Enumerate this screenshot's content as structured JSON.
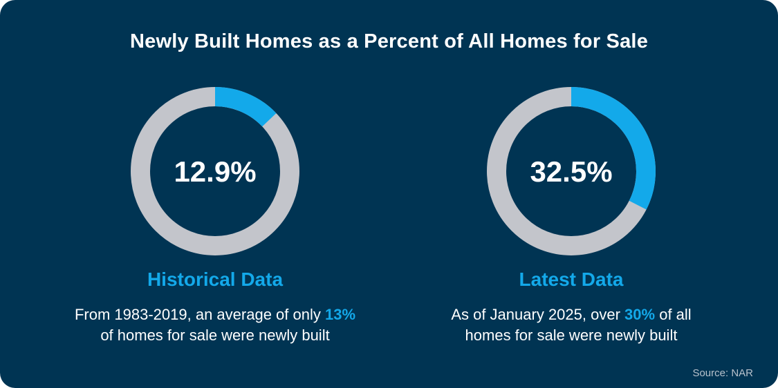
{
  "colors": {
    "background": "#003453",
    "accent": "#13a9ea",
    "track": "#c3c5cb",
    "text": "#ffffff"
  },
  "title": "Newly Built Homes as a Percent of All Homes for Sale",
  "panels": [
    {
      "heading": "Historical Data",
      "desc_line1_pre": "From 1983-2019, an average of only",
      "desc_highlight": "13%",
      "desc_line1_post": "",
      "desc_line2": "of homes for sale were newly built"
    },
    {
      "heading": "Latest Data",
      "desc_line1_pre": "As of January 2025, over",
      "desc_highlight": "30%",
      "desc_line1_post": "of all",
      "desc_line2": "homes for sale were newly built"
    }
  ],
  "source": "Source: NAR",
  "chart_data": [
    {
      "type": "pie",
      "title": "Historical Data",
      "value": 12.9,
      "label": "12.9%",
      "max": 100
    },
    {
      "type": "pie",
      "title": "Latest Data",
      "value": 32.5,
      "label": "32.5%",
      "max": 100
    }
  ]
}
